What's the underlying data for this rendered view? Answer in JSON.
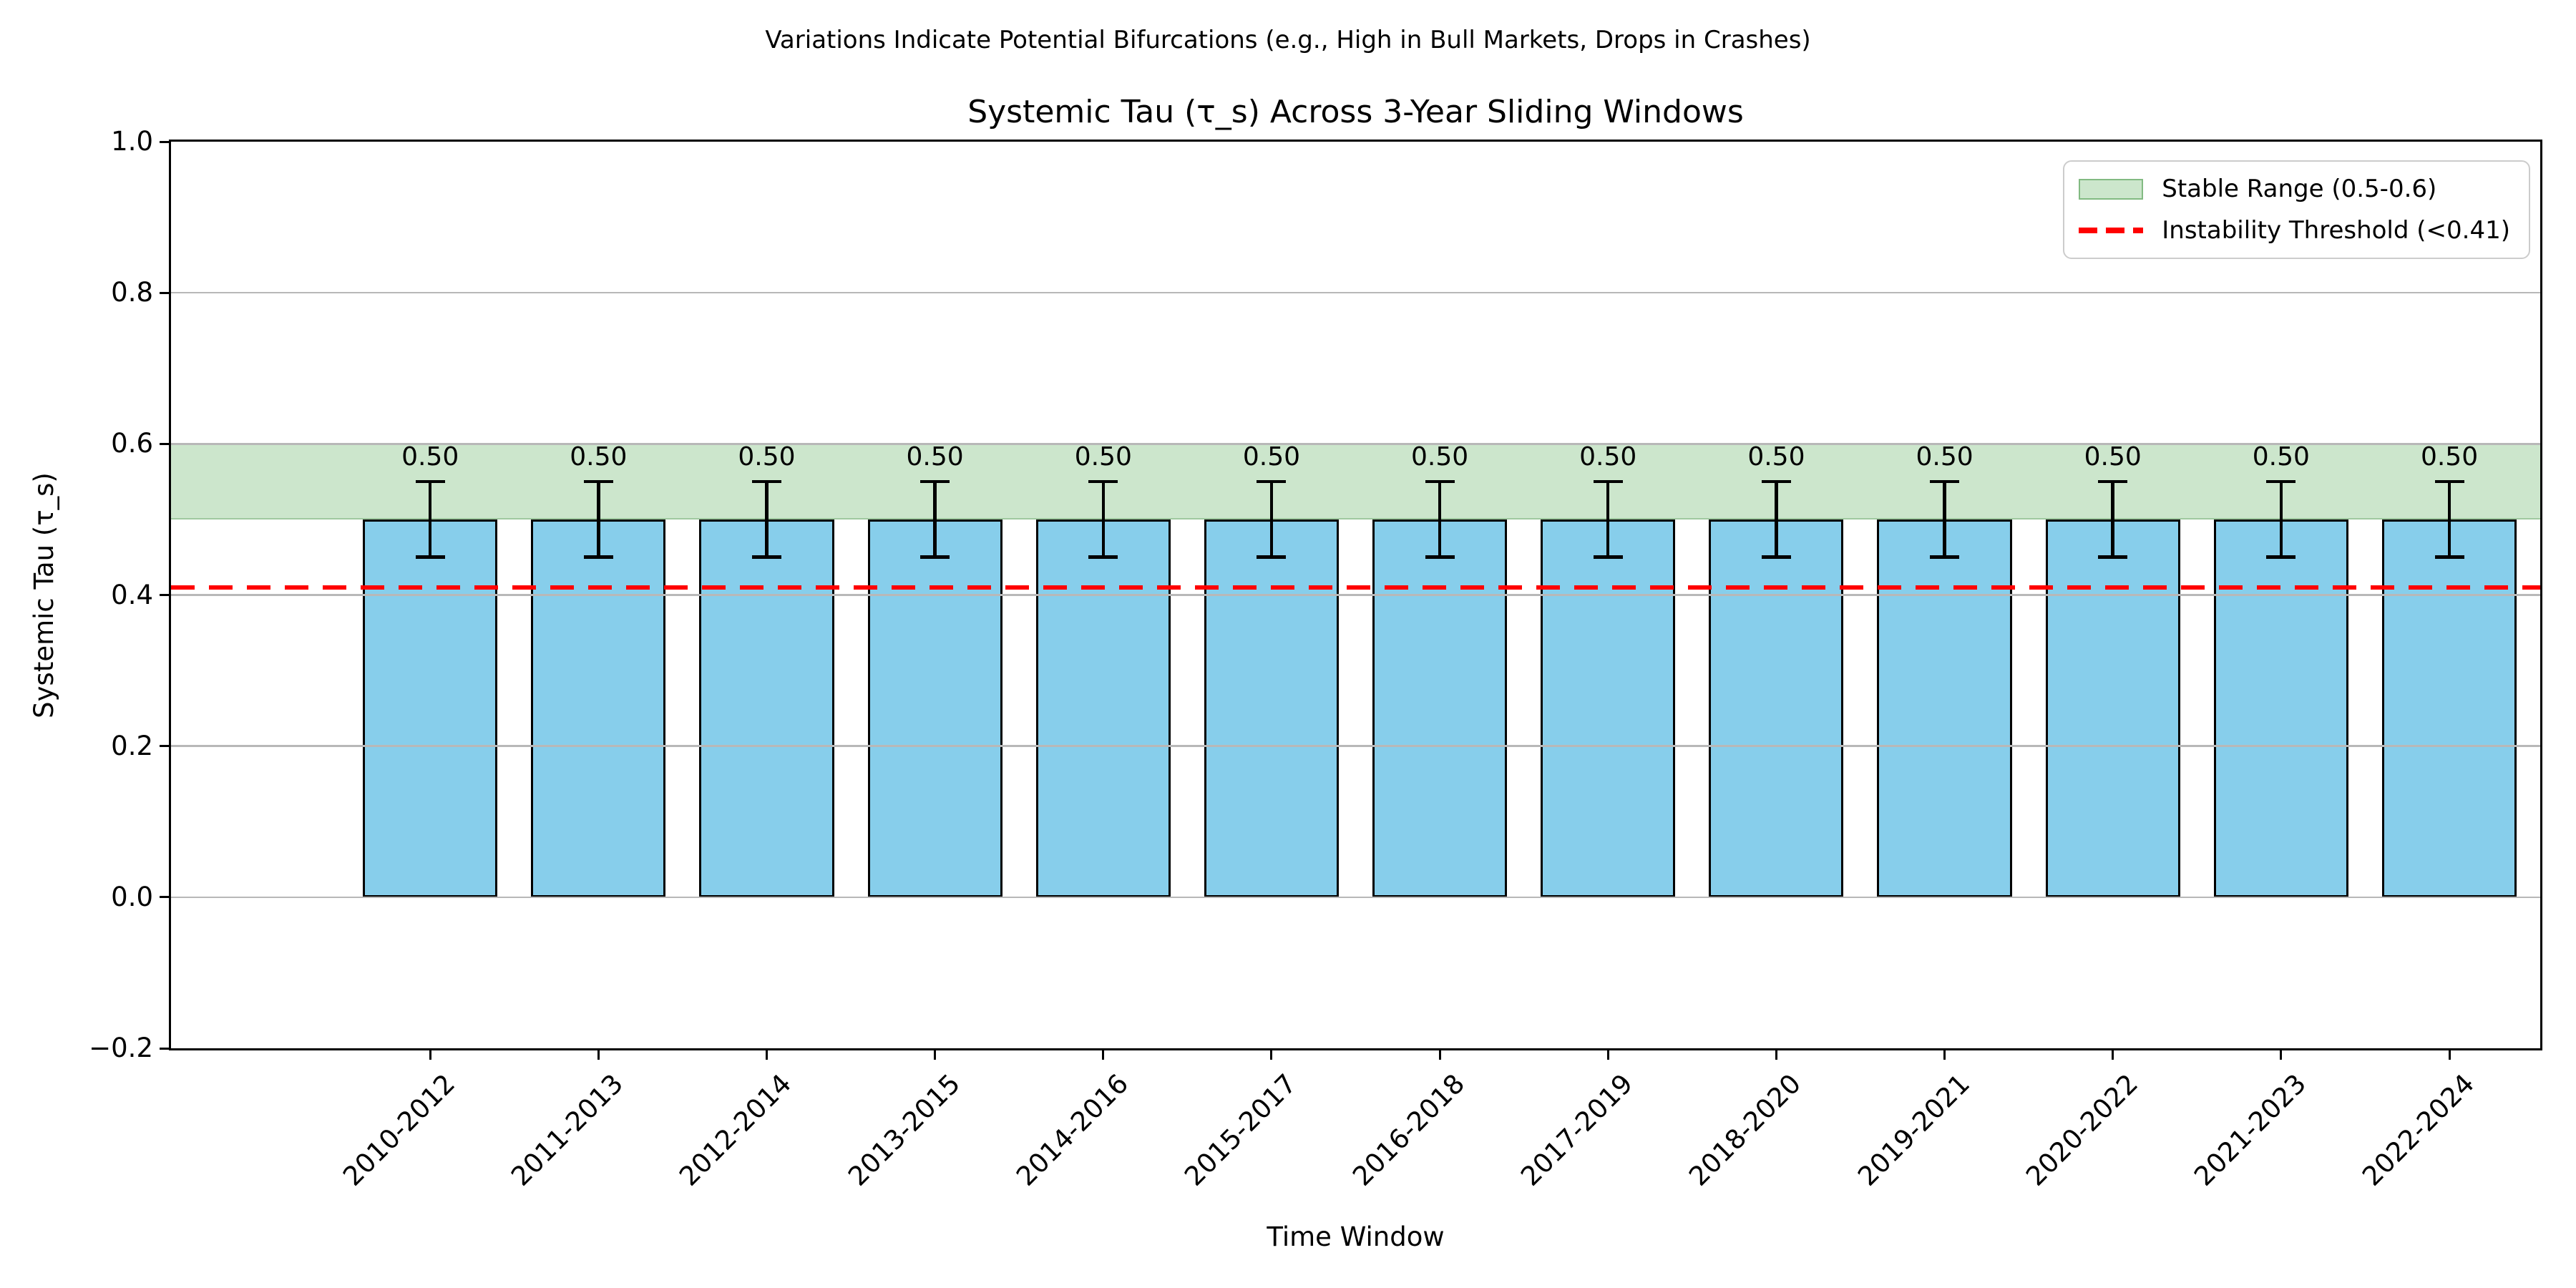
{
  "suptitle": "Variations Indicate Potential Bifurcations (e.g., High in Bull Markets, Drops in Crashes)",
  "chart_data": {
    "type": "bar",
    "title": "Systemic Tau (τ_s) Across 3-Year Sliding Windows",
    "xlabel": "Time Window",
    "ylabel": "Systemic Tau (τ_s)",
    "categories": [
      "2010-2012",
      "2011-2013",
      "2012-2014",
      "2013-2015",
      "2014-2016",
      "2015-2017",
      "2016-2018",
      "2017-2019",
      "2018-2020",
      "2019-2021",
      "2020-2022",
      "2021-2023",
      "2022-2024"
    ],
    "values": [
      0.5,
      0.5,
      0.5,
      0.5,
      0.5,
      0.5,
      0.5,
      0.5,
      0.5,
      0.5,
      0.5,
      0.5,
      0.5
    ],
    "errors": [
      0.05,
      0.05,
      0.05,
      0.05,
      0.05,
      0.05,
      0.05,
      0.05,
      0.05,
      0.05,
      0.05,
      0.05,
      0.05
    ],
    "bar_value_labels": [
      "0.50",
      "0.50",
      "0.50",
      "0.50",
      "0.50",
      "0.50",
      "0.50",
      "0.50",
      "0.50",
      "0.50",
      "0.50",
      "0.50",
      "0.50"
    ],
    "ylim": [
      -0.2,
      1.0
    ],
    "ytick_values": [
      1.0,
      0.8,
      0.6,
      0.4,
      0.2,
      0.0,
      -0.2
    ],
    "ytick_labels": [
      "1.0",
      "0.8",
      "0.6",
      "0.4",
      "0.2",
      "0.0",
      "−0.2"
    ],
    "gridline_values": [
      0.8,
      0.6,
      0.4,
      0.2,
      0.0
    ],
    "grid": true,
    "bar_color": "#87CEEB",
    "bar_edge_color": "#000000",
    "stable_band": {
      "from": 0.5,
      "to": 0.6,
      "color": "rgba(0,128,0,0.2)"
    },
    "threshold": {
      "value": 0.41,
      "color": "#FF0000",
      "style": "dashed"
    },
    "legend_position": "upper right",
    "legend_entries": [
      {
        "label": "Stable Range (0.5-0.6)",
        "type": "band"
      },
      {
        "label": "Instability Threshold (<0.41)",
        "type": "dashed-line"
      }
    ]
  }
}
